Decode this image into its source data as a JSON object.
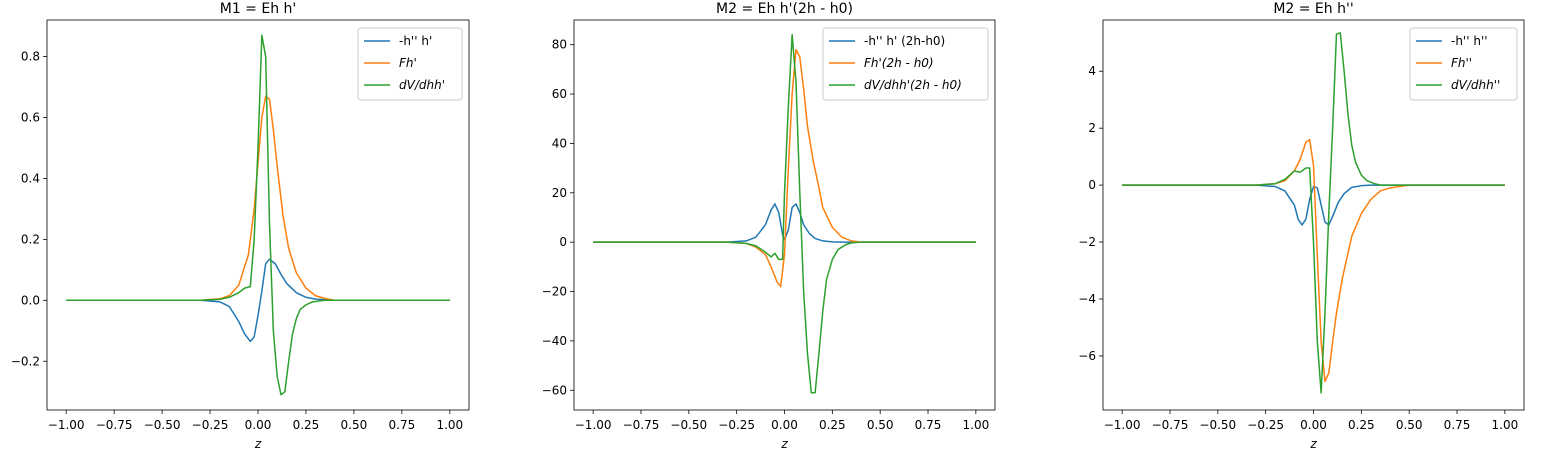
{
  "chart_data": [
    {
      "type": "line",
      "title": "M1 = Eh h'",
      "xlabel": "z",
      "ylabel": "",
      "xlim": [
        -1.1,
        1.1
      ],
      "ylim": [
        -0.36,
        0.92
      ],
      "xticks": [
        -1.0,
        -0.75,
        -0.5,
        -0.25,
        0.0,
        0.25,
        0.5,
        0.75,
        1.0
      ],
      "xtick_labels": [
        "−1.00",
        "−0.75",
        "−0.50",
        "−0.25",
        "0.00",
        "0.25",
        "0.50",
        "0.75",
        "1.00"
      ],
      "yticks": [
        -0.2,
        0.0,
        0.2,
        0.4,
        0.6,
        0.8
      ],
      "ytick_labels": [
        "−0.2",
        "0.0",
        "0.2",
        "0.4",
        "0.6",
        "0.8"
      ],
      "legend": "top-right",
      "grid": false,
      "series": [
        {
          "name": "-h'' h'",
          "color": "#1f77b4",
          "x": [
            -1.0,
            -0.3,
            -0.2,
            -0.15,
            -0.1,
            -0.07,
            -0.04,
            -0.02,
            0.0,
            0.02,
            0.04,
            0.06,
            0.09,
            0.12,
            0.15,
            0.2,
            0.25,
            0.3,
            0.4,
            1.0
          ],
          "y": [
            0.0,
            0.0,
            -0.005,
            -0.02,
            -0.07,
            -0.11,
            -0.135,
            -0.12,
            -0.05,
            0.03,
            0.12,
            0.135,
            0.12,
            0.085,
            0.055,
            0.025,
            0.01,
            0.004,
            0.0,
            0.0
          ]
        },
        {
          "name": "Fh'",
          "color": "#ff7f0e",
          "x": [
            -1.0,
            -0.3,
            -0.2,
            -0.15,
            -0.1,
            -0.05,
            -0.02,
            0.0,
            0.02,
            0.04,
            0.06,
            0.08,
            0.1,
            0.13,
            0.16,
            0.2,
            0.25,
            0.3,
            0.35,
            0.4,
            1.0
          ],
          "y": [
            0.0,
            0.0,
            0.005,
            0.015,
            0.05,
            0.15,
            0.3,
            0.45,
            0.6,
            0.67,
            0.66,
            0.56,
            0.44,
            0.28,
            0.17,
            0.09,
            0.04,
            0.015,
            0.006,
            0.0,
            0.0
          ]
        },
        {
          "name": "dV/dhh'",
          "color": "#2ca02c",
          "x": [
            -1.0,
            -0.3,
            -0.2,
            -0.15,
            -0.1,
            -0.07,
            -0.04,
            -0.02,
            0.0,
            0.02,
            0.04,
            0.06,
            0.08,
            0.1,
            0.12,
            0.14,
            0.16,
            0.18,
            0.2,
            0.22,
            0.25,
            0.28,
            0.32,
            0.35,
            0.4,
            1.0
          ],
          "y": [
            0.0,
            0.0,
            0.003,
            0.01,
            0.025,
            0.04,
            0.045,
            0.2,
            0.5,
            0.87,
            0.8,
            0.25,
            -0.1,
            -0.25,
            -0.31,
            -0.3,
            -0.2,
            -0.11,
            -0.06,
            -0.03,
            -0.015,
            -0.006,
            -0.002,
            0.0,
            0.0,
            0.0
          ]
        }
      ]
    },
    {
      "type": "line",
      "title": "M2 = Eh h'(2h - h0)",
      "xlabel": "z",
      "ylabel": "",
      "xlim": [
        -1.1,
        1.1
      ],
      "ylim": [
        -68,
        90
      ],
      "xticks": [
        -1.0,
        -0.75,
        -0.5,
        -0.25,
        0.0,
        0.25,
        0.5,
        0.75,
        1.0
      ],
      "xtick_labels": [
        "−1.00",
        "−0.75",
        "−0.50",
        "−0.25",
        "0.00",
        "0.25",
        "0.50",
        "0.75",
        "1.00"
      ],
      "yticks": [
        -60,
        -40,
        -20,
        0,
        20,
        40,
        60,
        80
      ],
      "ytick_labels": [
        "−60",
        "−40",
        "−20",
        "0",
        "20",
        "40",
        "60",
        "80"
      ],
      "legend": "top-right",
      "grid": false,
      "series": [
        {
          "name": "-h'' h' (2h-h0)",
          "color": "#1f77b4",
          "x": [
            -1.0,
            -0.3,
            -0.2,
            -0.15,
            -0.1,
            -0.07,
            -0.05,
            -0.03,
            -0.01,
            0.0,
            0.02,
            0.04,
            0.06,
            0.08,
            0.1,
            0.13,
            0.16,
            0.2,
            0.25,
            0.3,
            1.0
          ],
          "y": [
            0.0,
            0.0,
            0.5,
            2.0,
            7.0,
            13.0,
            15.5,
            12.0,
            3.0,
            1.0,
            5.0,
            14.0,
            15.5,
            12.0,
            7.0,
            3.5,
            1.5,
            0.5,
            0.1,
            0.0,
            0.0
          ]
        },
        {
          "name": "Fh'(2h - h0)",
          "color": "#ff7f0e",
          "x": [
            -1.0,
            -0.3,
            -0.2,
            -0.15,
            -0.1,
            -0.07,
            -0.04,
            -0.02,
            0.0,
            0.02,
            0.04,
            0.06,
            0.08,
            0.1,
            0.12,
            0.15,
            0.18,
            0.2,
            0.25,
            0.3,
            0.35,
            0.4,
            1.0
          ],
          "y": [
            0.0,
            0.0,
            -0.5,
            -2.0,
            -5.0,
            -10.0,
            -16.0,
            -18.0,
            -5.0,
            30.0,
            60.0,
            78.0,
            75.0,
            62.0,
            47.0,
            33.0,
            22.0,
            14.0,
            6.0,
            2.0,
            0.5,
            0.0,
            0.0
          ]
        },
        {
          "name": "dV/dhh'(2h - h0)",
          "color": "#2ca02c",
          "x": [
            -1.0,
            -0.3,
            -0.2,
            -0.15,
            -0.1,
            -0.07,
            -0.05,
            -0.03,
            -0.01,
            0.0,
            0.02,
            0.04,
            0.06,
            0.08,
            0.1,
            0.12,
            0.14,
            0.16,
            0.18,
            0.2,
            0.22,
            0.25,
            0.28,
            0.32,
            0.35,
            0.4,
            1.0
          ],
          "y": [
            0.0,
            0.0,
            -0.5,
            -1.5,
            -4.0,
            -6.0,
            -4.5,
            -7.0,
            -7.0,
            20.0,
            55.0,
            84.0,
            65.0,
            20.0,
            -20.0,
            -45.0,
            -61.0,
            -61.0,
            -45.0,
            -28.0,
            -15.0,
            -7.0,
            -3.0,
            -1.0,
            -0.3,
            0.0,
            0.0
          ]
        }
      ]
    },
    {
      "type": "line",
      "title": "M2 = Eh h''",
      "xlabel": "z",
      "ylabel": "",
      "xlim": [
        -1.1,
        1.1
      ],
      "ylim": [
        -7.9,
        5.8
      ],
      "xticks": [
        -1.0,
        -0.75,
        -0.5,
        -0.25,
        0.0,
        0.25,
        0.5,
        0.75,
        1.0
      ],
      "xtick_labels": [
        "−1.00",
        "−0.75",
        "−0.50",
        "−0.25",
        "0.00",
        "0.25",
        "0.50",
        "0.75",
        "1.00"
      ],
      "yticks": [
        -6,
        -4,
        -2,
        0,
        2,
        4
      ],
      "ytick_labels": [
        "−6",
        "−4",
        "−2",
        "0",
        "2",
        "4"
      ],
      "legend": "top-right",
      "grid": false,
      "series": [
        {
          "name": "-h'' h''",
          "color": "#1f77b4",
          "x": [
            -1.0,
            -0.3,
            -0.2,
            -0.15,
            -0.1,
            -0.08,
            -0.06,
            -0.04,
            -0.02,
            0.0,
            0.02,
            0.04,
            0.06,
            0.08,
            0.1,
            0.13,
            0.16,
            0.2,
            0.25,
            0.3,
            1.0
          ],
          "y": [
            0.0,
            0.0,
            -0.05,
            -0.2,
            -0.7,
            -1.2,
            -1.4,
            -1.2,
            -0.5,
            -0.05,
            -0.1,
            -0.7,
            -1.3,
            -1.4,
            -1.1,
            -0.6,
            -0.3,
            -0.08,
            -0.02,
            0.0,
            0.0
          ]
        },
        {
          "name": "Fh''",
          "color": "#ff7f0e",
          "x": [
            -1.0,
            -0.3,
            -0.2,
            -0.15,
            -0.1,
            -0.07,
            -0.04,
            -0.02,
            0.0,
            0.02,
            0.04,
            0.06,
            0.08,
            0.1,
            0.12,
            0.15,
            0.18,
            0.2,
            0.25,
            0.3,
            0.35,
            0.4,
            0.5,
            1.0
          ],
          "y": [
            0.0,
            0.0,
            0.05,
            0.15,
            0.5,
            0.9,
            1.5,
            1.6,
            0.7,
            -2.5,
            -5.5,
            -6.9,
            -6.6,
            -5.5,
            -4.5,
            -3.3,
            -2.4,
            -1.8,
            -1.0,
            -0.5,
            -0.2,
            -0.1,
            0.0,
            0.0
          ]
        },
        {
          "name": "dV/dhh''",
          "color": "#2ca02c",
          "x": [
            -1.0,
            -0.3,
            -0.2,
            -0.15,
            -0.1,
            -0.07,
            -0.04,
            -0.02,
            0.0,
            0.02,
            0.04,
            0.06,
            0.08,
            0.1,
            0.12,
            0.14,
            0.16,
            0.18,
            0.2,
            0.22,
            0.25,
            0.28,
            0.32,
            0.35,
            0.4,
            1.0
          ],
          "y": [
            0.0,
            0.0,
            0.05,
            0.2,
            0.5,
            0.45,
            0.6,
            0.6,
            -2.0,
            -5.5,
            -7.3,
            -4.5,
            -1.0,
            2.0,
            5.3,
            5.35,
            4.0,
            2.5,
            1.4,
            0.8,
            0.35,
            0.15,
            0.05,
            0.0,
            0.0,
            0.0
          ]
        }
      ]
    }
  ]
}
